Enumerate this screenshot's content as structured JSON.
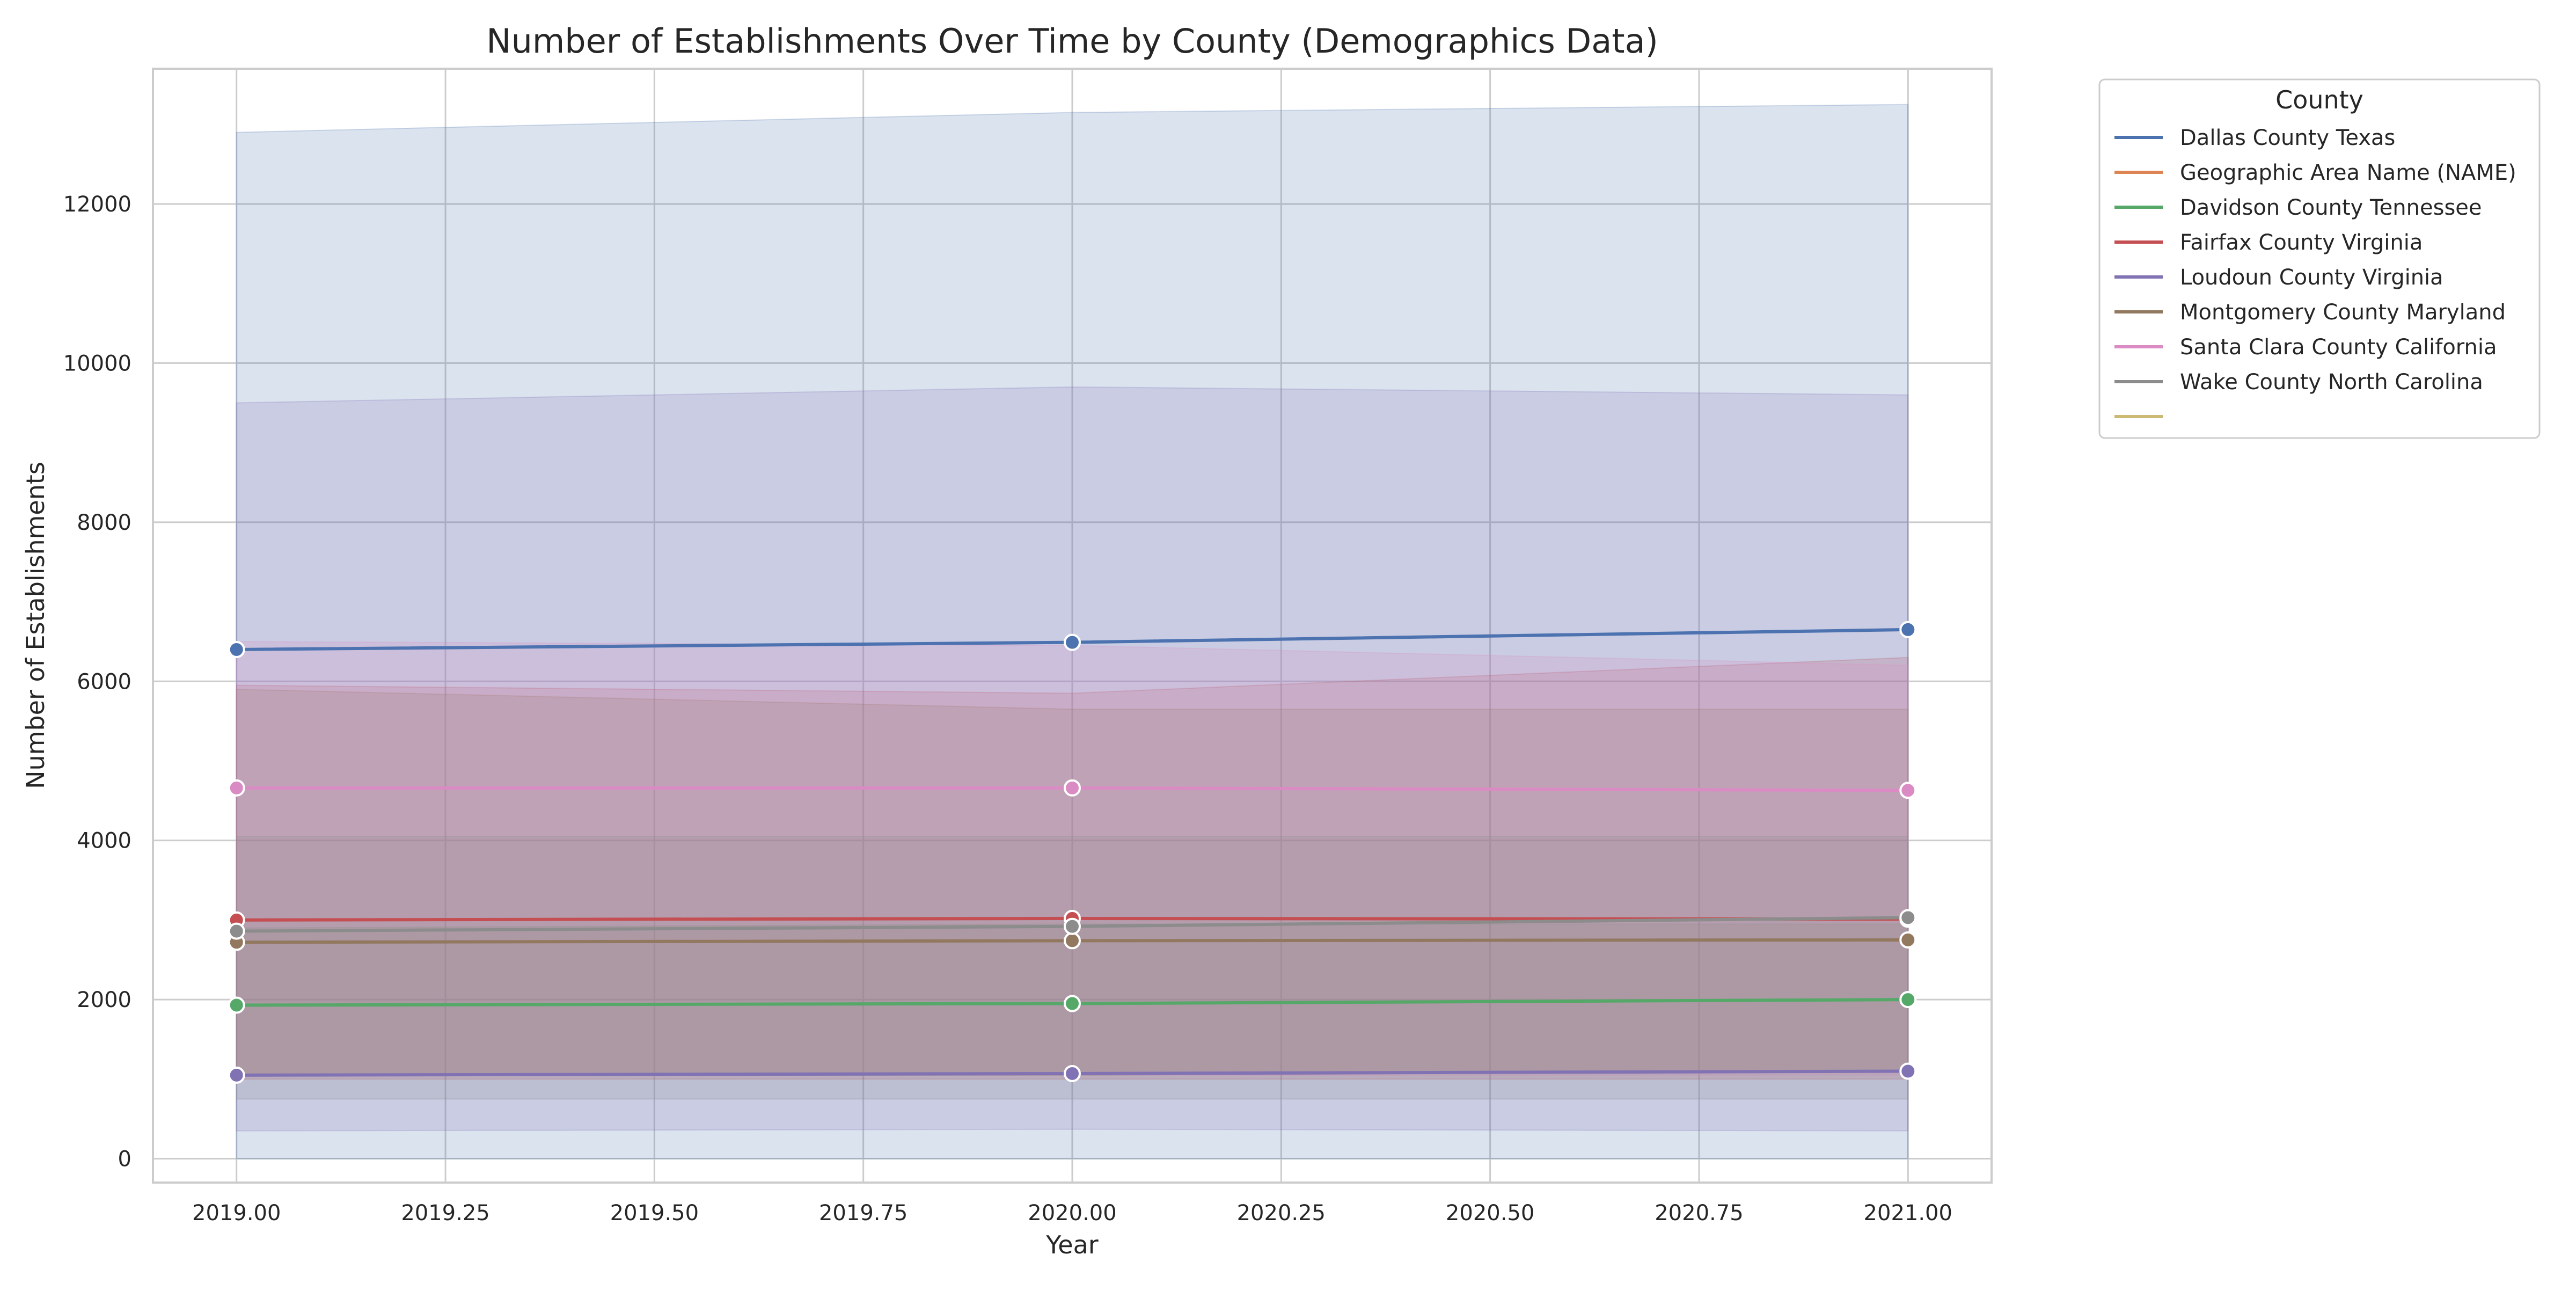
{
  "chart_data": {
    "type": "line",
    "title": "Number of Establishments Over Time by County (Demographics Data)",
    "xlabel": "Year",
    "ylabel": "Number of Establishments",
    "xlim": [
      2018.9,
      2021.1
    ],
    "ylim": [
      -300,
      13700
    ],
    "xticks": [
      2019.0,
      2019.25,
      2019.5,
      2019.75,
      2020.0,
      2020.25,
      2020.5,
      2020.75,
      2021.0
    ],
    "xtick_labels": [
      "2019.00",
      "2019.25",
      "2019.50",
      "2019.75",
      "2020.00",
      "2020.25",
      "2020.50",
      "2020.75",
      "2021.00"
    ],
    "yticks": [
      0,
      2000,
      4000,
      6000,
      8000,
      10000,
      12000
    ],
    "ytick_labels": [
      "0",
      "2000",
      "4000",
      "6000",
      "8000",
      "10000",
      "12000"
    ],
    "grid": true,
    "x": [
      2019,
      2020,
      2021
    ],
    "legend": {
      "title": "County",
      "placement": "outside-right-top",
      "entries": [
        {
          "label": "Dallas County Texas",
          "color": "#4c72b0"
        },
        {
          "label": "Geographic Area Name (NAME)",
          "color": "#dd8452"
        },
        {
          "label": "Davidson County Tennessee",
          "color": "#55a868"
        },
        {
          "label": "Fairfax County Virginia",
          "color": "#c44e52"
        },
        {
          "label": "Loudoun County Virginia",
          "color": "#8172b3"
        },
        {
          "label": "Montgomery County Maryland",
          "color": "#937860"
        },
        {
          "label": "Santa Clara County California",
          "color": "#da8bc3"
        },
        {
          "label": "Wake County North Carolina",
          "color": "#8c8c8c"
        },
        {
          "label": "",
          "color": "#ccb974"
        }
      ]
    },
    "series": [
      {
        "name": "Dallas County Texas",
        "color": "#4c72b0",
        "values": [
          6400,
          6490,
          6650
        ],
        "ci_low": [
          0,
          0,
          0
        ],
        "ci_high": [
          12900,
          13150,
          13250
        ]
      },
      {
        "name": "Davidson County Tennessee",
        "color": "#55a868",
        "values": [
          1930,
          1950,
          2000
        ],
        "ci_low": [
          1050,
          1050,
          1100
        ],
        "ci_high": [
          2900,
          2950,
          2950
        ]
      },
      {
        "name": "Fairfax County Virginia",
        "color": "#c44e52",
        "values": [
          3000,
          3020,
          3010
        ],
        "ci_low": [
          1000,
          1000,
          1000
        ],
        "ci_high": [
          5950,
          5850,
          6300
        ]
      },
      {
        "name": "Loudoun County Virginia",
        "color": "#8172b3",
        "values": [
          1050,
          1070,
          1100
        ],
        "ci_low": [
          350,
          370,
          350
        ],
        "ci_high": [
          9500,
          9700,
          9600
        ]
      },
      {
        "name": "Montgomery County Maryland",
        "color": "#937860",
        "values": [
          2720,
          2740,
          2750
        ],
        "ci_low": [
          1050,
          1050,
          1100
        ],
        "ci_high": [
          5900,
          5650,
          5650
        ]
      },
      {
        "name": "Santa Clara County California",
        "color": "#da8bc3",
        "values": [
          4660,
          4660,
          4630
        ],
        "ci_low": [
          1050,
          1050,
          1050
        ],
        "ci_high": [
          6500,
          6450,
          6200
        ]
      },
      {
        "name": "Wake County North Carolina",
        "color": "#8c8c8c",
        "values": [
          2860,
          2920,
          3030
        ],
        "ci_low": [
          750,
          750,
          750
        ],
        "ci_high": [
          4050,
          4050,
          4050
        ]
      }
    ]
  }
}
